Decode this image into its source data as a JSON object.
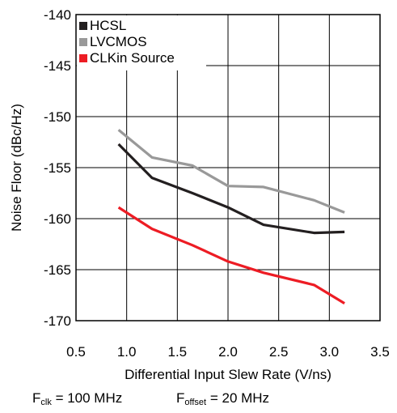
{
  "chart_data": {
    "type": "line",
    "title": "",
    "xlabel": "Differential Input Slew Rate (V/ns)",
    "ylabel": "Noise Floor (dBc/Hz)",
    "xlim": [
      0.5,
      3.5
    ],
    "ylim": [
      -170,
      -140
    ],
    "xticks": [
      0.5,
      1.0,
      1.5,
      2.0,
      2.5,
      3.0,
      3.5
    ],
    "xtick_labels": [
      "0.5",
      "1.0",
      "1.5",
      "2.0",
      "2.5",
      "3.0",
      "3.5"
    ],
    "yticks": [
      -140,
      -145,
      -150,
      -155,
      -160,
      -165,
      -170
    ],
    "ytick_labels": [
      "-140",
      "-145",
      "-150",
      "-155",
      "-160",
      "-165",
      "-170"
    ],
    "grid": true,
    "legend_position": "top-left",
    "series": [
      {
        "name": "HCSL",
        "color": "#231f20",
        "x": [
          0.92,
          1.25,
          1.65,
          2.0,
          2.35,
          2.85,
          3.15
        ],
        "y": [
          -152.7,
          -156.0,
          -157.5,
          -158.9,
          -160.6,
          -161.4,
          -161.3
        ]
      },
      {
        "name": "LVCMOS",
        "color": "#999999",
        "x": [
          0.92,
          1.25,
          1.65,
          2.0,
          2.35,
          2.85,
          3.15
        ],
        "y": [
          -151.3,
          -154.0,
          -154.8,
          -156.8,
          -156.9,
          -158.2,
          -159.4
        ]
      },
      {
        "name": "CLKin Source",
        "color": "#ed1c24",
        "x": [
          0.92,
          1.25,
          1.65,
          2.0,
          2.35,
          2.85,
          3.15
        ],
        "y": [
          -158.9,
          -161.0,
          -162.6,
          -164.2,
          -165.3,
          -166.5,
          -168.3
        ]
      }
    ]
  },
  "footnotes": {
    "fclk_symbol": "F",
    "fclk_sub": "clk",
    "fclk_value": " = 100 MHz",
    "foffset_symbol": "F",
    "foffset_sub": "offset",
    "foffset_value": " = 20 MHz"
  }
}
